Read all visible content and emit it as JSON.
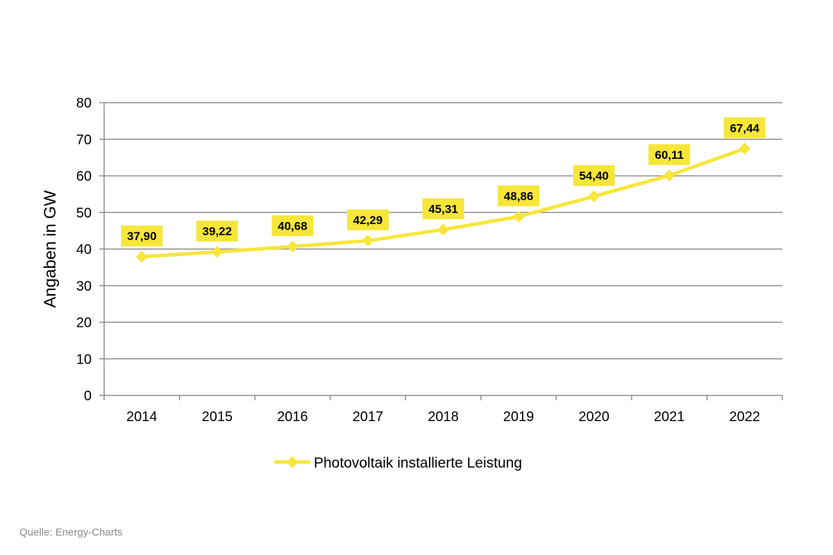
{
  "chart_data": {
    "type": "line",
    "categories": [
      "2014",
      "2015",
      "2016",
      "2017",
      "2018",
      "2019",
      "2020",
      "2021",
      "2022"
    ],
    "series": [
      {
        "name": "Photovoltaik installierte Leistung",
        "values": [
          37.9,
          39.22,
          40.68,
          42.29,
          45.31,
          48.86,
          54.4,
          60.11,
          67.44
        ],
        "data_labels": [
          "37,90",
          "39,22",
          "40,68",
          "42,29",
          "45,31",
          "48,86",
          "54,40",
          "60,11",
          "67,44"
        ]
      }
    ],
    "title": "",
    "xlabel": "",
    "ylabel": "Angaben in GW",
    "ylim": [
      0,
      80
    ],
    "yticks": [
      "0",
      "10",
      "20",
      "30",
      "40",
      "50",
      "60",
      "70",
      "80"
    ],
    "grid": true,
    "legend_position": "bottom",
    "colors": {
      "series": "#f7e63a",
      "label_bg": "#f7e63a",
      "grid": "#8c8c8c",
      "axis": "#8c8c8c"
    }
  },
  "source_note": "Quelle: Energy-Charts"
}
